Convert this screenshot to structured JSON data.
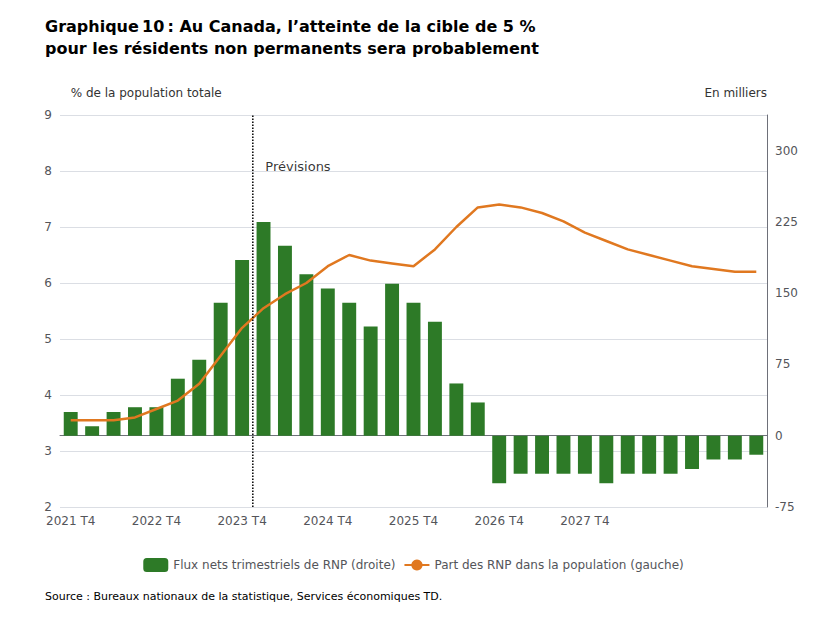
{
  "chart_data": {
    "type": "bar",
    "title": "Graphique 10 : Au Canada, l’atteinte de la cible de 5 %\npour les résidents non permanents sera probablement",
    "source": "Source : Bureaux nationaux de la statistique, Services économiques TD.",
    "ylabel": "% de la population totale",
    "y2label": "En milliers",
    "categories": [
      "2021 T4",
      null,
      null,
      null,
      "2022 T4",
      null,
      null,
      null,
      "2023 T4",
      null,
      null,
      null,
      "2024 T4",
      null,
      null,
      null,
      "2025 T4",
      null,
      null,
      null,
      "2026 T4",
      null,
      null,
      null,
      "2027 T4",
      null,
      null,
      null,
      null,
      null,
      null,
      null,
      null
    ],
    "series": [
      {
        "name": "Flux nets trimestriels de RNP (droite)",
        "type": "bar",
        "axis": "y2",
        "color": "#2d7a27",
        "values": [
          25,
          10,
          25,
          30,
          30,
          60,
          80,
          140,
          185,
          225,
          200,
          170,
          155,
          140,
          115,
          160,
          140,
          120,
          55,
          35,
          -50,
          -40,
          -40,
          -40,
          -40,
          -50,
          -40,
          -40,
          -40,
          -35,
          -25,
          -25,
          -20
        ]
      },
      {
        "name": "Part des RNP dans la population (gauche)",
        "type": "line",
        "color": "#e07820",
        "values": [
          3.55,
          3.55,
          3.55,
          3.6,
          3.75,
          3.9,
          4.2,
          4.7,
          5.2,
          5.55,
          5.8,
          6.0,
          6.3,
          6.5,
          6.4,
          6.35,
          6.3,
          6.6,
          7.0,
          7.35,
          7.4,
          7.35,
          7.25,
          7.1,
          6.9,
          6.75,
          6.6,
          6.5,
          6.4,
          6.3,
          6.25,
          6.2,
          6.2
        ]
      }
    ],
    "ylim": [
      2,
      9
    ],
    "yticks": [
      2,
      3,
      4,
      5,
      6,
      7,
      8,
      9
    ],
    "y2lim": [
      -75,
      337.5
    ],
    "y2ticks": [
      -75,
      0,
      75,
      150,
      225,
      300
    ],
    "grid": true,
    "legend": "bottom",
    "annotations": [
      {
        "text": "Prévisions",
        "x": 8.5,
        "y": 8.25
      }
    ],
    "vlines": [
      {
        "x": 8.5,
        "line_style": "dotted"
      }
    ]
  }
}
